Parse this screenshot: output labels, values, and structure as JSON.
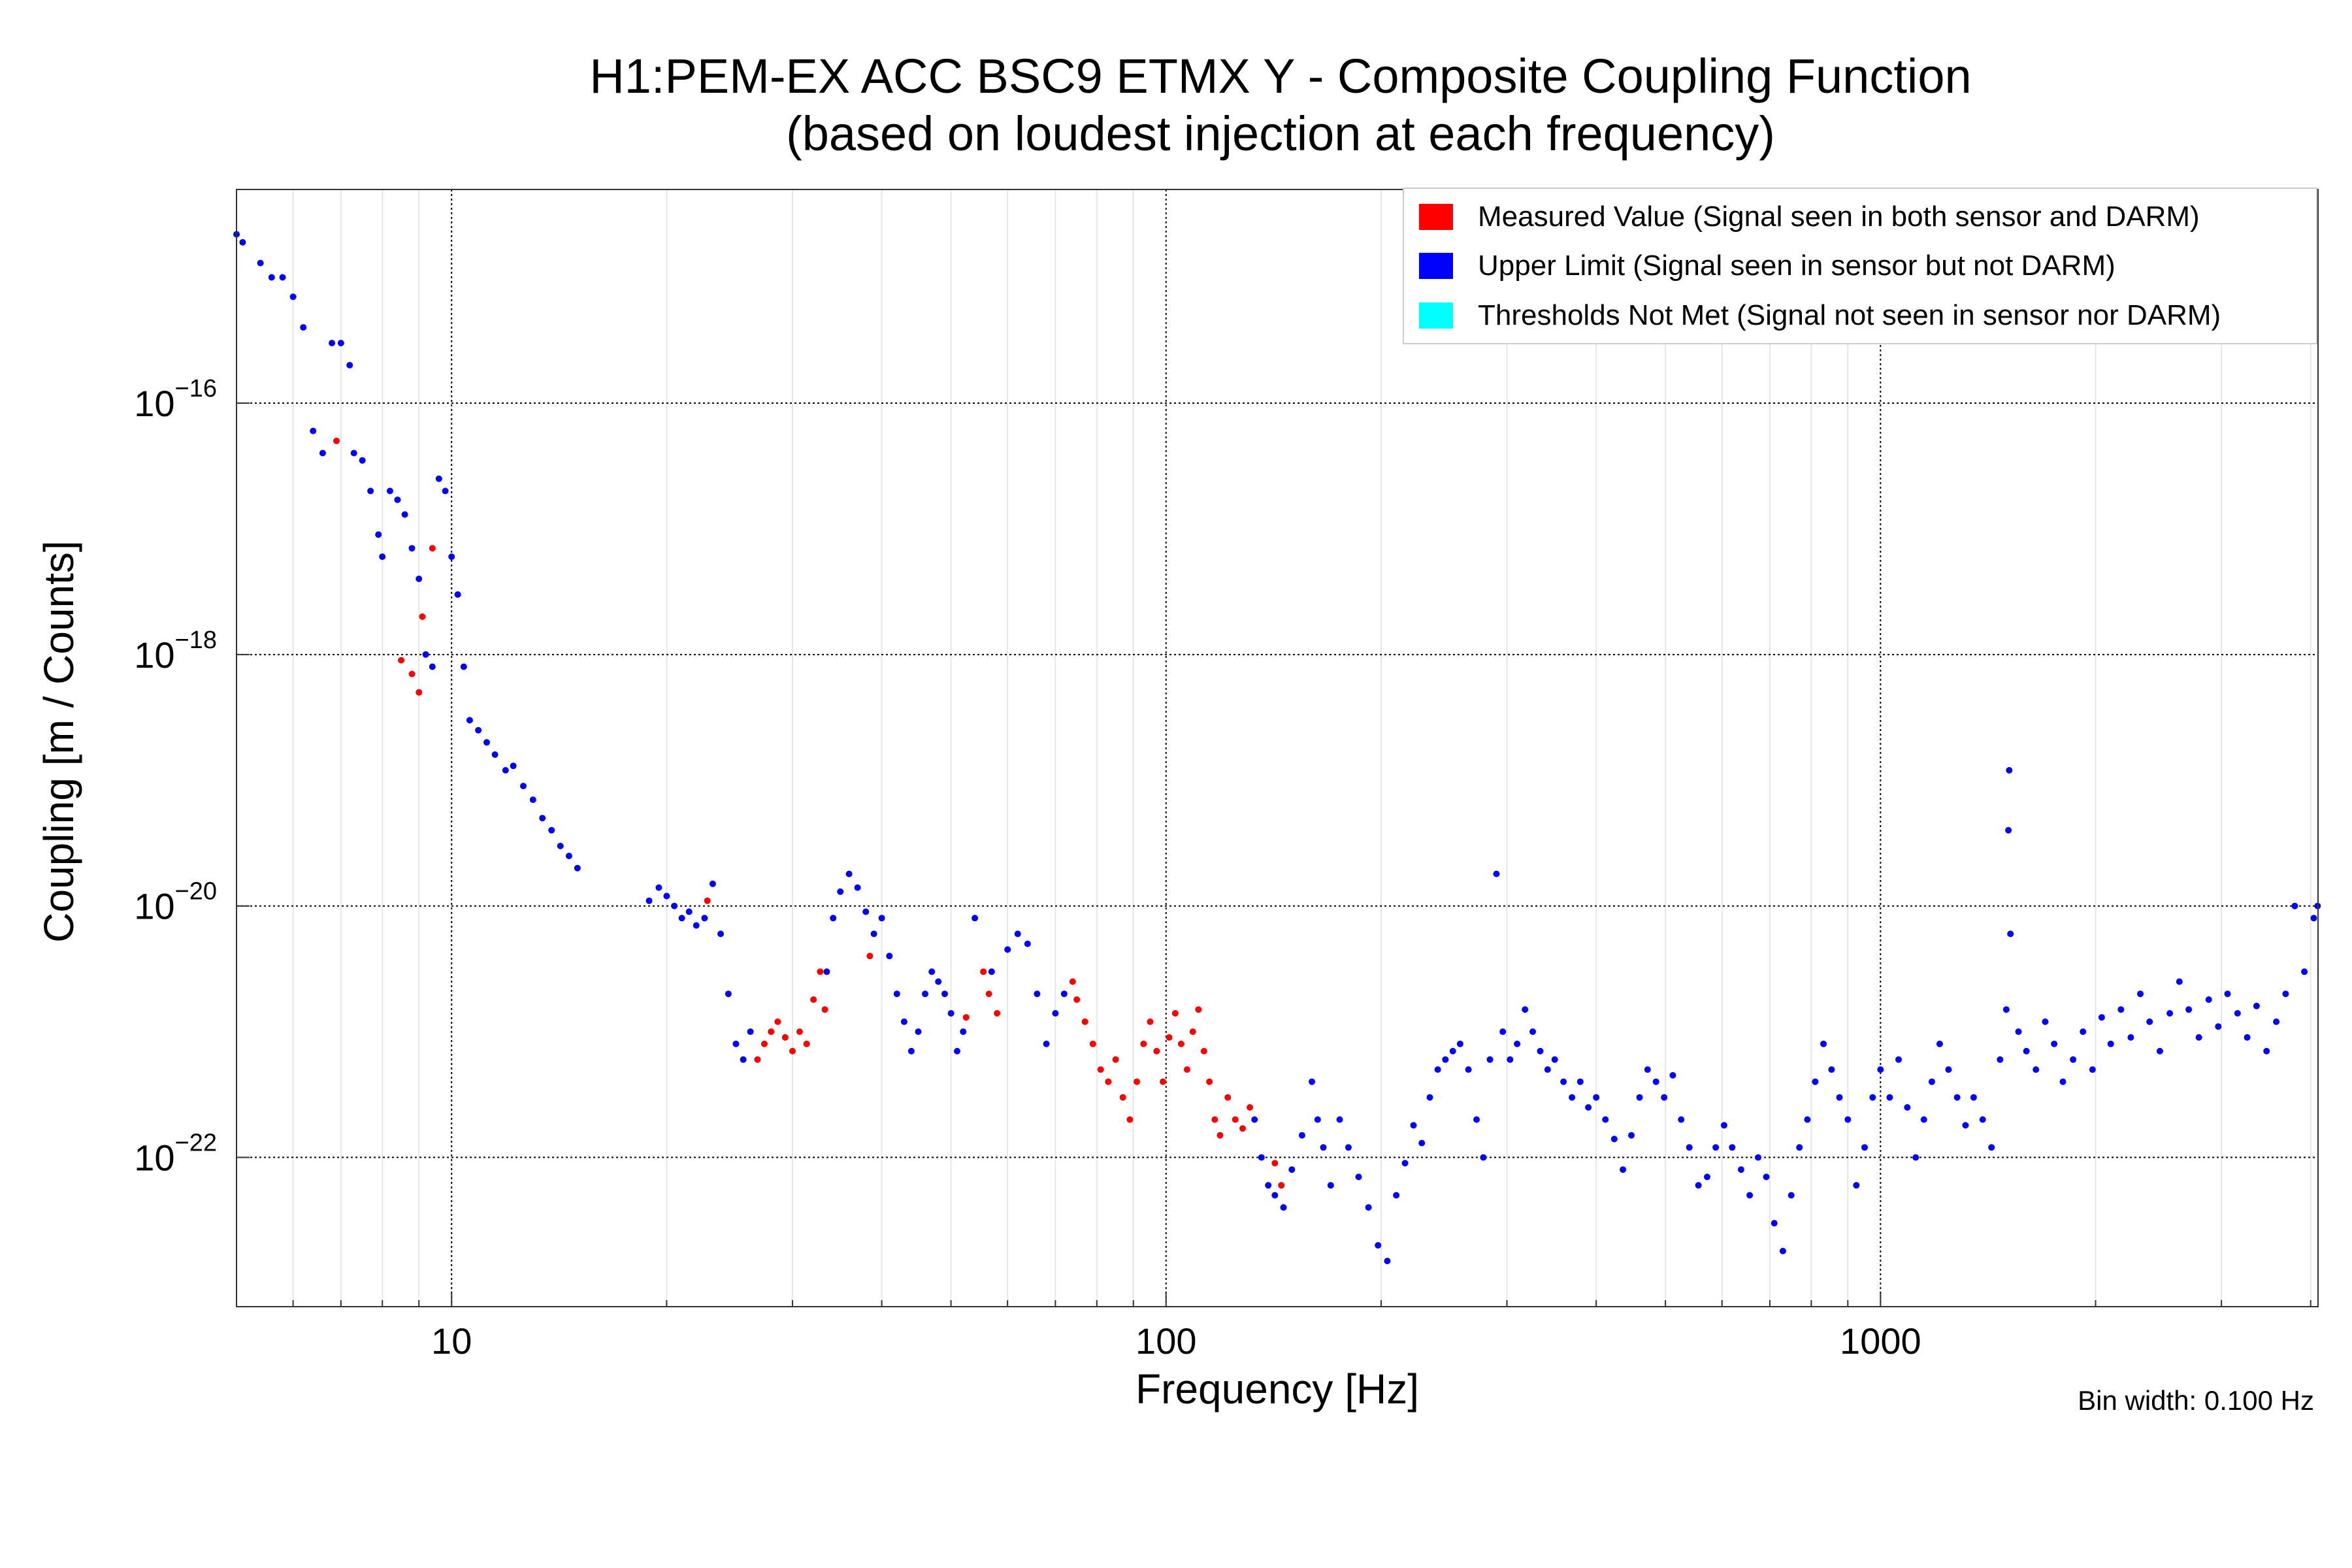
{
  "chart_data": {
    "type": "scatter",
    "title": [
      "H1:PEM-EX ACC BSC9 ETMX Y - Composite Coupling Function",
      "(based on loudest injection at each frequency)"
    ],
    "xlabel": "Frequency [Hz]",
    "ylabel": "Coupling [m / Counts]",
    "xscale": "log",
    "yscale": "log",
    "xlim": [
      5,
      4096
    ],
    "ylim": [
      6.5e-24,
      5e-15
    ],
    "x_ticks": [
      {
        "value": 10,
        "label": "10"
      },
      {
        "value": 100,
        "label": "100"
      },
      {
        "value": 1000,
        "label": "1000"
      }
    ],
    "y_ticks": [
      {
        "value": 1e-22,
        "base": "10",
        "exp": "−22"
      },
      {
        "value": 1e-20,
        "base": "10",
        "exp": "−20"
      },
      {
        "value": 1e-18,
        "base": "10",
        "exp": "−18"
      },
      {
        "value": 1e-16,
        "base": "10",
        "exp": "−16"
      }
    ],
    "grid": true,
    "legend_position": "top-right",
    "legend": [
      {
        "label": "Measured Value (Signal seen in both sensor and DARM)",
        "color": "#ff0000"
      },
      {
        "label": "Upper Limit (Signal seen in sensor but not DARM)",
        "color": "#0000ff"
      },
      {
        "label": "Thresholds Not Met (Signal not seen in sensor nor DARM)",
        "color": "#00ffff"
      }
    ],
    "annotation": "Bin width: 0.100 Hz",
    "series": [
      {
        "name": "Upper Limit",
        "color": "#0000ff",
        "points": [
          [
            5.0,
            2.2e-15
          ],
          [
            5.1,
            1.9e-15
          ],
          [
            5.4,
            1.3e-15
          ],
          [
            5.6,
            1e-15
          ],
          [
            5.8,
            1e-15
          ],
          [
            6.0,
            7e-16
          ],
          [
            6.2,
            4e-16
          ],
          [
            6.4,
            6e-17
          ],
          [
            6.6,
            4e-17
          ],
          [
            6.8,
            3e-16
          ],
          [
            7.0,
            3e-16
          ],
          [
            7.2,
            2e-16
          ],
          [
            7.3,
            4e-17
          ],
          [
            7.5,
            3.5e-17
          ],
          [
            7.7,
            2e-17
          ],
          [
            7.9,
            9e-18
          ],
          [
            8.0,
            6e-18
          ],
          [
            8.2,
            2e-17
          ],
          [
            8.4,
            1.7e-17
          ],
          [
            8.6,
            1.3e-17
          ],
          [
            8.8,
            7e-18
          ],
          [
            9.0,
            4e-18
          ],
          [
            9.2,
            1e-18
          ],
          [
            9.4,
            8e-19
          ],
          [
            9.6,
            2.5e-17
          ],
          [
            9.8,
            2e-17
          ],
          [
            10.0,
            6e-18
          ],
          [
            10.2,
            3e-18
          ],
          [
            10.4,
            8e-19
          ],
          [
            10.6,
            3e-19
          ],
          [
            10.9,
            2.5e-19
          ],
          [
            11.2,
            2e-19
          ],
          [
            11.5,
            1.6e-19
          ],
          [
            11.9,
            1.2e-19
          ],
          [
            12.2,
            1.3e-19
          ],
          [
            12.6,
            9e-20
          ],
          [
            13.0,
            7e-20
          ],
          [
            13.4,
            5e-20
          ],
          [
            13.8,
            4e-20
          ],
          [
            14.2,
            3e-20
          ],
          [
            14.6,
            2.5e-20
          ],
          [
            15.0,
            2e-20
          ],
          [
            18.9,
            1.1e-20
          ],
          [
            19.5,
            1.4e-20
          ],
          [
            20.0,
            1.2e-20
          ],
          [
            20.5,
            1e-20
          ],
          [
            21.0,
            8e-21
          ],
          [
            21.5,
            9e-21
          ],
          [
            22.0,
            7e-21
          ],
          [
            22.6,
            8e-21
          ],
          [
            23.2,
            1.5e-20
          ],
          [
            23.8,
            6e-21
          ],
          [
            24.4,
            2e-21
          ],
          [
            25.0,
            8e-22
          ],
          [
            25.6,
            6e-22
          ],
          [
            26.2,
            1e-21
          ],
          [
            33.5,
            3e-21
          ],
          [
            34.2,
            8e-21
          ],
          [
            35.0,
            1.3e-20
          ],
          [
            36.0,
            1.8e-20
          ],
          [
            37.0,
            1.4e-20
          ],
          [
            38.0,
            9e-21
          ],
          [
            39.0,
            6e-21
          ],
          [
            40.0,
            8e-21
          ],
          [
            41.0,
            4e-21
          ],
          [
            42.0,
            2e-21
          ],
          [
            43.0,
            1.2e-21
          ],
          [
            44.0,
            7e-22
          ],
          [
            45.0,
            1e-21
          ],
          [
            46.0,
            2e-21
          ],
          [
            47.0,
            3e-21
          ],
          [
            48.0,
            2.5e-21
          ],
          [
            49.0,
            2e-21
          ],
          [
            50.0,
            1.4e-21
          ],
          [
            51.0,
            7e-22
          ],
          [
            52.0,
            1e-21
          ],
          [
            54.0,
            8e-21
          ],
          [
            57.0,
            3e-21
          ],
          [
            60.0,
            4.5e-21
          ],
          [
            62.0,
            6e-21
          ],
          [
            64.0,
            5e-21
          ],
          [
            66.0,
            2e-21
          ],
          [
            68.0,
            8e-22
          ],
          [
            70.0,
            1.4e-21
          ],
          [
            72.0,
            2e-21
          ],
          [
            133.0,
            2e-22
          ],
          [
            136.0,
            1e-22
          ],
          [
            139.0,
            6e-23
          ],
          [
            142.0,
            5e-23
          ],
          [
            146.0,
            4e-23
          ],
          [
            150.0,
            8e-23
          ],
          [
            155.0,
            1.5e-22
          ],
          [
            160.0,
            4e-22
          ],
          [
            163.0,
            2e-22
          ],
          [
            166.0,
            1.2e-22
          ],
          [
            170.0,
            6e-23
          ],
          [
            175.0,
            2e-22
          ],
          [
            180.0,
            1.2e-22
          ],
          [
            186.0,
            7e-23
          ],
          [
            192.0,
            4e-23
          ],
          [
            198.0,
            2e-23
          ],
          [
            204.0,
            1.5e-23
          ],
          [
            210.0,
            5e-23
          ],
          [
            216.0,
            9e-23
          ],
          [
            222.0,
            1.8e-22
          ],
          [
            228.0,
            1.3e-22
          ],
          [
            234.0,
            3e-22
          ],
          [
            240.0,
            5e-22
          ],
          [
            246.0,
            6e-22
          ],
          [
            252.0,
            7e-22
          ],
          [
            258.0,
            8e-22
          ],
          [
            265.0,
            5e-22
          ],
          [
            272.0,
            2e-22
          ],
          [
            278.0,
            1e-22
          ],
          [
            284.0,
            6e-22
          ],
          [
            290.0,
            1.8e-20
          ],
          [
            296.0,
            1e-21
          ],
          [
            303.0,
            6e-22
          ],
          [
            310.0,
            8e-22
          ],
          [
            318.0,
            1.5e-21
          ],
          [
            326.0,
            1e-21
          ],
          [
            334.0,
            7e-22
          ],
          [
            342.0,
            5e-22
          ],
          [
            350.0,
            6e-22
          ],
          [
            360.0,
            4e-22
          ],
          [
            370.0,
            3e-22
          ],
          [
            380.0,
            4e-22
          ],
          [
            390.0,
            2.5e-22
          ],
          [
            400.0,
            3e-22
          ],
          [
            412.0,
            2e-22
          ],
          [
            424.0,
            1.4e-22
          ],
          [
            436.0,
            8e-23
          ],
          [
            448.0,
            1.5e-22
          ],
          [
            460.0,
            3e-22
          ],
          [
            472.0,
            5e-22
          ],
          [
            485.0,
            4e-22
          ],
          [
            498.0,
            3e-22
          ],
          [
            512.0,
            4.5e-22
          ],
          [
            526.0,
            2e-22
          ],
          [
            540.0,
            1.2e-22
          ],
          [
            556.0,
            6e-23
          ],
          [
            572.0,
            7e-23
          ],
          [
            588.0,
            1.2e-22
          ],
          [
            604.0,
            1.8e-22
          ],
          [
            620.0,
            1.2e-22
          ],
          [
            638.0,
            8e-23
          ],
          [
            656.0,
            5e-23
          ],
          [
            674.0,
            1e-22
          ],
          [
            692.0,
            7e-23
          ],
          [
            710.0,
            3e-23
          ],
          [
            730.0,
            1.8e-23
          ],
          [
            750.0,
            5e-23
          ],
          [
            770.0,
            1.2e-22
          ],
          [
            790.0,
            2e-22
          ],
          [
            810.0,
            4e-22
          ],
          [
            832.0,
            8e-22
          ],
          [
            854.0,
            5e-22
          ],
          [
            876.0,
            3e-22
          ],
          [
            900.0,
            2e-22
          ],
          [
            925.0,
            6e-23
          ],
          [
            950.0,
            1.2e-22
          ],
          [
            975.0,
            3e-22
          ],
          [
            1000.0,
            5e-22
          ],
          [
            1030.0,
            3e-22
          ],
          [
            1060.0,
            6e-22
          ],
          [
            1090.0,
            2.5e-22
          ],
          [
            1120.0,
            1e-22
          ],
          [
            1150.0,
            2e-22
          ],
          [
            1180.0,
            4e-22
          ],
          [
            1210.0,
            8e-22
          ],
          [
            1245.0,
            5e-22
          ],
          [
            1280.0,
            3e-22
          ],
          [
            1315.0,
            1.8e-22
          ],
          [
            1350.0,
            3e-22
          ],
          [
            1390.0,
            2e-22
          ],
          [
            1430.0,
            1.2e-22
          ],
          [
            1470.0,
            6e-22
          ],
          [
            1500.0,
            1.5e-21
          ],
          [
            1510.0,
            4e-20
          ],
          [
            1514.0,
            1.2e-19
          ],
          [
            1520.0,
            6e-21
          ],
          [
            1560.0,
            1e-21
          ],
          [
            1600.0,
            7e-22
          ],
          [
            1650.0,
            5e-22
          ],
          [
            1700.0,
            1.2e-21
          ],
          [
            1750.0,
            8e-22
          ],
          [
            1800.0,
            4e-22
          ],
          [
            1860.0,
            6e-22
          ],
          [
            1920.0,
            1e-21
          ],
          [
            1980.0,
            5e-22
          ],
          [
            2040.0,
            1.3e-21
          ],
          [
            2100.0,
            8e-22
          ],
          [
            2170.0,
            1.5e-21
          ],
          [
            2240.0,
            9e-22
          ],
          [
            2310.0,
            2e-21
          ],
          [
            2380.0,
            1.2e-21
          ],
          [
            2460.0,
            7e-22
          ],
          [
            2540.0,
            1.4e-21
          ],
          [
            2620.0,
            2.5e-21
          ],
          [
            2700.0,
            1.5e-21
          ],
          [
            2790.0,
            9e-22
          ],
          [
            2880.0,
            1.8e-21
          ],
          [
            2970.0,
            1.1e-21
          ],
          [
            3060.0,
            2e-21
          ],
          [
            3160.0,
            1.4e-21
          ],
          [
            3260.0,
            9e-22
          ],
          [
            3360.0,
            1.6e-21
          ],
          [
            3470.0,
            7e-22
          ],
          [
            3580.0,
            1.2e-21
          ],
          [
            3690.0,
            2e-21
          ],
          [
            3800.0,
            1e-20
          ],
          [
            3920.0,
            3e-21
          ],
          [
            4040.0,
            8e-21
          ],
          [
            4090.0,
            1e-20
          ]
        ]
      },
      {
        "name": "Measured Value",
        "color": "#ff0000",
        "points": [
          [
            6.9,
            5e-17
          ],
          [
            8.5,
            9e-19
          ],
          [
            8.8,
            7e-19
          ],
          [
            9.0,
            5e-19
          ],
          [
            9.1,
            2e-18
          ],
          [
            9.4,
            7e-18
          ],
          [
            22.8,
            1.1e-20
          ],
          [
            26.8,
            6e-22
          ],
          [
            27.4,
            8e-22
          ],
          [
            28.0,
            1e-21
          ],
          [
            28.6,
            1.2e-21
          ],
          [
            29.3,
            9e-22
          ],
          [
            30.0,
            7e-22
          ],
          [
            30.7,
            1e-21
          ],
          [
            31.4,
            8e-22
          ],
          [
            32.1,
            1.8e-21
          ],
          [
            32.8,
            3e-21
          ],
          [
            33.3,
            1.5e-21
          ],
          [
            38.5,
            4e-21
          ],
          [
            52.5,
            1.3e-21
          ],
          [
            55.5,
            3e-21
          ],
          [
            56.5,
            2e-21
          ],
          [
            58.0,
            1.4e-21
          ],
          [
            74.0,
            2.5e-21
          ],
          [
            75.0,
            1.8e-21
          ],
          [
            77.0,
            1.2e-21
          ],
          [
            79.0,
            8e-22
          ],
          [
            81.0,
            5e-22
          ],
          [
            83.0,
            4e-22
          ],
          [
            85.0,
            6e-22
          ],
          [
            87.0,
            3e-22
          ],
          [
            89.0,
            2e-22
          ],
          [
            91.0,
            4e-22
          ],
          [
            93.0,
            8e-22
          ],
          [
            95.0,
            1.2e-21
          ],
          [
            97.0,
            7e-22
          ],
          [
            99.0,
            4e-22
          ],
          [
            101.0,
            9e-22
          ],
          [
            103.0,
            1.4e-21
          ],
          [
            105.0,
            8e-22
          ],
          [
            107.0,
            5e-22
          ],
          [
            109.0,
            1e-21
          ],
          [
            111.0,
            1.5e-21
          ],
          [
            113.0,
            7e-22
          ],
          [
            115.0,
            4e-22
          ],
          [
            117.0,
            2e-22
          ],
          [
            119.0,
            1.5e-22
          ],
          [
            122.0,
            3e-22
          ],
          [
            125.0,
            2e-22
          ],
          [
            128.0,
            1.7e-22
          ],
          [
            131.0,
            2.5e-22
          ],
          [
            142.0,
            9e-23
          ],
          [
            145.0,
            6e-23
          ]
        ]
      }
    ]
  }
}
